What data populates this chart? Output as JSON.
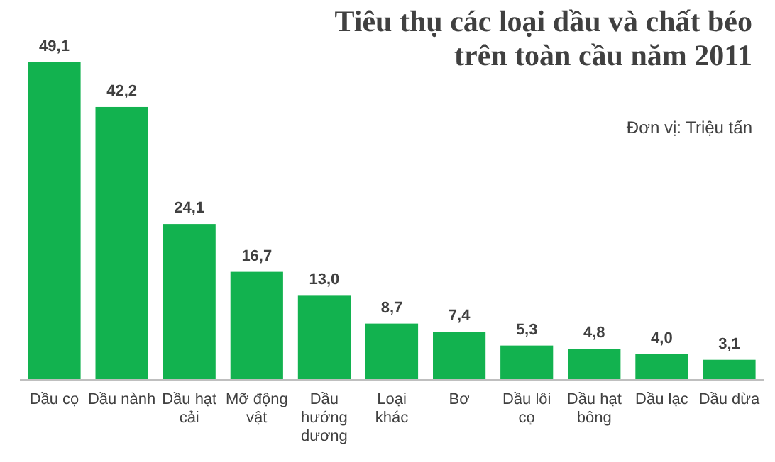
{
  "chart_data": {
    "type": "bar",
    "title": "Tiêu thụ các loại dầu và chất béo trên toàn cầu năm 2011",
    "subtitle": "Đơn vị: Triệu tấn",
    "categories": [
      "Dầu cọ",
      "Dầu nành",
      "Dầu hạt cải",
      "Mỡ động vật",
      "Dầu hướng dương",
      "Loại khác",
      "Bơ",
      "Dầu lôi cọ",
      "Dầu hạt bông",
      "Dầu lạc",
      "Dầu dừa"
    ],
    "values": [
      49.1,
      42.2,
      24.1,
      16.7,
      13.0,
      8.7,
      7.4,
      5.3,
      4.8,
      4.0,
      3.1
    ],
    "value_labels": [
      "49,1",
      "42,2",
      "24,1",
      "16,7",
      "13,0",
      "8,7",
      "7,4",
      "5,3",
      "4,8",
      "4,0",
      "3,1"
    ],
    "color": "#12b24f",
    "grid": false
  }
}
